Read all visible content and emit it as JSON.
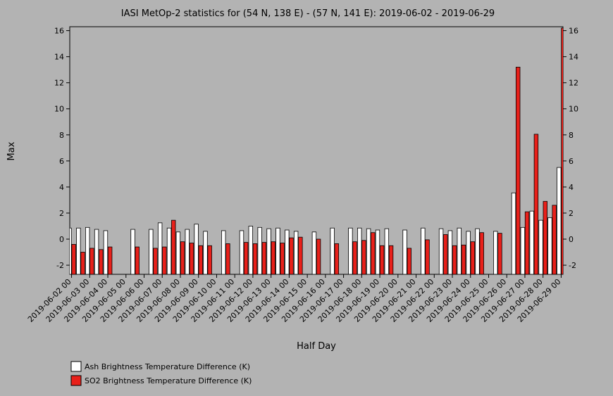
{
  "chart_data": {
    "type": "bar",
    "title": "IASI MetOp-2 statistics for (54 N, 138 E) - (57 N, 141 E): 2019-06-02 - 2019-06-29",
    "xlabel": "Half Day",
    "ylabel": "Max",
    "ylim": [
      -2.7,
      16.3
    ],
    "yticks": [
      -2,
      0,
      2,
      4,
      6,
      8,
      10,
      12,
      14,
      16
    ],
    "grid": false,
    "legend_position": "bottom-left",
    "x_tick_labels": [
      "2019-06-02 00",
      "2019-06-03 00",
      "2019-06-04 00",
      "2019-06-05 00",
      "2019-06-06 00",
      "2019-06-07 00",
      "2019-06-08 00",
      "2019-06-09 00",
      "2019-06-10 00",
      "2019-06-11 00",
      "2019-06-12 00",
      "2019-06-13 00",
      "2019-06-14 00",
      "2019-06-15 00",
      "2019-06-16 00",
      "2019-06-17 00",
      "2019-06-18 00",
      "2019-06-19 00",
      "2019-06-20 00",
      "2019-06-21 00",
      "2019-06-22 00",
      "2019-06-23 00",
      "2019-06-24 00",
      "2019-06-25 00",
      "2019-06-26 00",
      "2019-06-27 00",
      "2019-06-28 00",
      "2019-06-29 00"
    ],
    "categories": [
      "2019-06-02 00",
      "2019-06-02 12",
      "2019-06-03 00",
      "2019-06-03 12",
      "2019-06-04 00",
      "2019-06-04 12",
      "2019-06-05 00",
      "2019-06-05 12",
      "2019-06-06 00",
      "2019-06-06 12",
      "2019-06-07 00",
      "2019-06-07 12",
      "2019-06-08 00",
      "2019-06-08 12",
      "2019-06-09 00",
      "2019-06-09 12",
      "2019-06-10 00",
      "2019-06-10 12",
      "2019-06-11 00",
      "2019-06-11 12",
      "2019-06-12 00",
      "2019-06-12 12",
      "2019-06-13 00",
      "2019-06-13 12",
      "2019-06-14 00",
      "2019-06-14 12",
      "2019-06-15 00",
      "2019-06-15 12",
      "2019-06-16 00",
      "2019-06-16 12",
      "2019-06-17 00",
      "2019-06-17 12",
      "2019-06-18 00",
      "2019-06-18 12",
      "2019-06-19 00",
      "2019-06-19 12",
      "2019-06-20 00",
      "2019-06-20 12",
      "2019-06-21 00",
      "2019-06-21 12",
      "2019-06-22 00",
      "2019-06-22 12",
      "2019-06-23 00",
      "2019-06-23 12",
      "2019-06-24 00",
      "2019-06-24 12",
      "2019-06-25 00",
      "2019-06-25 12",
      "2019-06-26 00",
      "2019-06-26 12",
      "2019-06-27 00",
      "2019-06-27 12",
      "2019-06-28 00",
      "2019-06-28 12",
      "2019-06-29 00"
    ],
    "series": [
      {
        "name": "Ash Brightness Temperature Difference (K)",
        "color": "#ffffff",
        "values": [
          0.85,
          0.85,
          0.9,
          0.75,
          0.65,
          null,
          null,
          0.75,
          null,
          0.75,
          1.25,
          0.85,
          0.55,
          0.75,
          1.15,
          0.6,
          null,
          0.65,
          null,
          0.65,
          1.0,
          0.9,
          0.8,
          0.85,
          0.7,
          0.6,
          null,
          0.55,
          null,
          0.85,
          null,
          0.85,
          0.85,
          0.8,
          0.7,
          0.8,
          null,
          0.7,
          null,
          0.85,
          null,
          0.8,
          0.65,
          0.85,
          0.6,
          0.8,
          null,
          0.6,
          null,
          3.55,
          0.9,
          2.15,
          1.45,
          1.65,
          5.5
        ]
      },
      {
        "name": "SO2 Brightness Temperature Difference (K)",
        "color": "#e8201a",
        "values": [
          -0.4,
          -1.0,
          -0.7,
          -0.8,
          -0.6,
          null,
          null,
          -0.6,
          null,
          -0.7,
          -0.6,
          1.45,
          -0.2,
          -0.3,
          -0.5,
          -0.5,
          null,
          -0.35,
          null,
          -0.25,
          -0.35,
          -0.25,
          -0.2,
          -0.3,
          0.1,
          0.15,
          null,
          0.0,
          null,
          -0.35,
          null,
          -0.2,
          -0.1,
          0.5,
          -0.5,
          -0.5,
          null,
          -0.7,
          null,
          -0.05,
          null,
          0.35,
          -0.5,
          -0.45,
          -0.2,
          0.5,
          null,
          0.45,
          null,
          13.2,
          2.1,
          8.05,
          2.9,
          2.6,
          16.2
        ]
      }
    ]
  }
}
